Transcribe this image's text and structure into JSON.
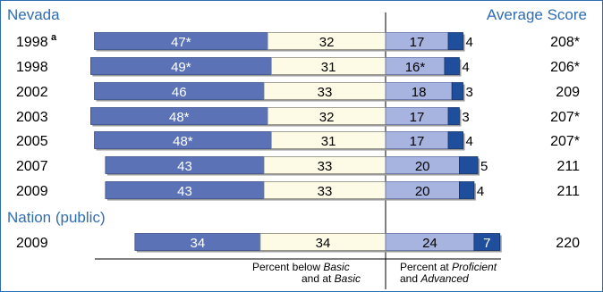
{
  "chart_data": {
    "type": "bar",
    "orientation": "horizontal-stacked-diverging",
    "state_label": "Nevada",
    "nation_label": "Nation (public)",
    "score_header": "Average Score",
    "footnote_marker": "a",
    "colors": {
      "below_basic": "#5b73b6",
      "basic": "#fdfbe6",
      "proficient": "#a8b4e0",
      "advanced": "#1f4f9c",
      "header": "#2f6db3",
      "frame": "#2f6db3"
    },
    "rows": [
      {
        "year": "1998",
        "note": "a",
        "below_basic": 47,
        "below_basic_label": "47*",
        "basic": 32,
        "basic_label": "32",
        "proficient": 17,
        "proficient_label": "17",
        "advanced": 4,
        "advanced_label": "4",
        "score": "208*"
      },
      {
        "year": "1998",
        "note": "",
        "below_basic": 49,
        "below_basic_label": "49*",
        "basic": 31,
        "basic_label": "31",
        "proficient": 16,
        "proficient_label": "16*",
        "advanced": 4,
        "advanced_label": "4",
        "score": "206*"
      },
      {
        "year": "2002",
        "note": "",
        "below_basic": 46,
        "below_basic_label": "46",
        "basic": 33,
        "basic_label": "33",
        "proficient": 18,
        "proficient_label": "18",
        "advanced": 3,
        "advanced_label": "3",
        "score": "209"
      },
      {
        "year": "2003",
        "note": "",
        "below_basic": 48,
        "below_basic_label": "48*",
        "basic": 32,
        "basic_label": "32",
        "proficient": 17,
        "proficient_label": "17",
        "advanced": 3,
        "advanced_label": "3",
        "score": "207*"
      },
      {
        "year": "2005",
        "note": "",
        "below_basic": 48,
        "below_basic_label": "48*",
        "basic": 31,
        "basic_label": "31",
        "proficient": 17,
        "proficient_label": "17",
        "advanced": 4,
        "advanced_label": "4",
        "score": "207*"
      },
      {
        "year": "2007",
        "note": "",
        "below_basic": 43,
        "below_basic_label": "43",
        "basic": 33,
        "basic_label": "33",
        "proficient": 20,
        "proficient_label": "20",
        "advanced": 5,
        "advanced_label": "5",
        "score": "211"
      },
      {
        "year": "2009",
        "note": "",
        "below_basic": 43,
        "below_basic_label": "43",
        "basic": 33,
        "basic_label": "33",
        "proficient": 20,
        "proficient_label": "20",
        "advanced": 4,
        "advanced_label": "4",
        "score": "211"
      }
    ],
    "nation_rows": [
      {
        "year": "2009",
        "note": "",
        "below_basic": 34,
        "below_basic_label": "34",
        "basic": 34,
        "basic_label": "34",
        "proficient": 24,
        "proficient_label": "24",
        "advanced": 7,
        "advanced_label": "7",
        "score": "220"
      }
    ],
    "axis_left": {
      "prefix": "Percent below ",
      "italic1": "Basic",
      "line2_prefix": "and at ",
      "italic2": "Basic"
    },
    "axis_right": {
      "prefix": "Percent at ",
      "italic1": "Proficient",
      "line2_prefix": "and ",
      "italic2": "Advanced"
    }
  }
}
